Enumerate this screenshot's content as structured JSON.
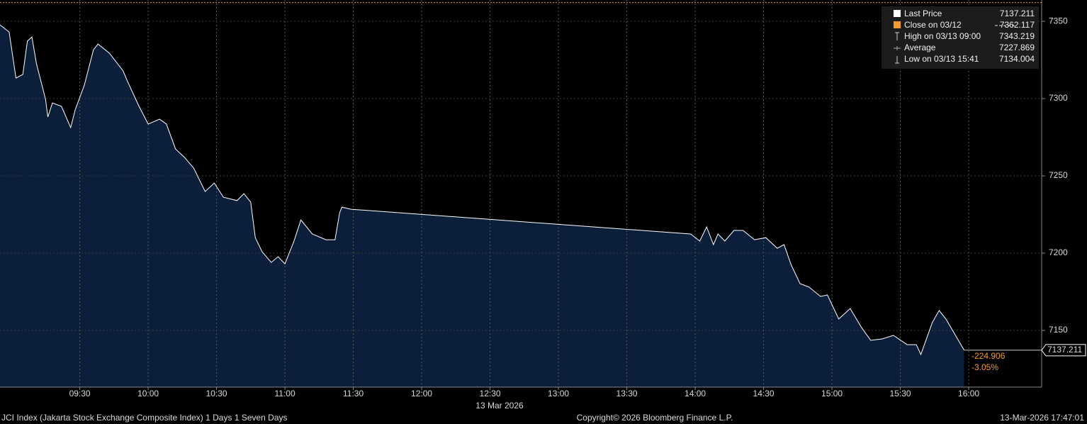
{
  "chart_data": {
    "type": "area",
    "xlim": [
      535,
      992
    ],
    "xticks": [
      {
        "value": 570,
        "label": "09:30"
      },
      {
        "value": 600,
        "label": "10:00"
      },
      {
        "value": 630,
        "label": "10:30"
      },
      {
        "value": 660,
        "label": "11:00"
      },
      {
        "value": 690,
        "label": "11:30"
      },
      {
        "value": 720,
        "label": "12:00"
      },
      {
        "value": 750,
        "label": "12:30"
      },
      {
        "value": 780,
        "label": "13:00"
      },
      {
        "value": 810,
        "label": "13:30"
      },
      {
        "value": 840,
        "label": "14:00"
      },
      {
        "value": 870,
        "label": "14:30"
      },
      {
        "value": 900,
        "label": "15:00"
      },
      {
        "value": 930,
        "label": "15:30"
      },
      {
        "value": 960,
        "label": "16:00"
      }
    ],
    "date_label": "13 Mar 2026",
    "ylim": [
      7113.3,
      7363.8
    ],
    "yticks": [
      7150,
      7200,
      7250,
      7300,
      7350
    ],
    "grid": true,
    "series": [
      {
        "name": "Last Price",
        "color": "#ffffff",
        "fill": "#0b1f3b",
        "x": [
          535,
          539,
          542,
          545,
          547,
          549,
          551,
          555,
          556,
          558,
          562,
          566,
          568,
          572,
          576,
          578,
          583,
          589,
          591,
          596,
          600,
          605,
          608,
          612,
          616,
          620,
          625,
          629,
          633,
          639,
          642,
          645,
          647,
          650,
          654,
          657,
          660,
          664,
          667,
          672,
          678,
          682,
          684,
          685,
          689,
          838,
          842,
          845,
          848,
          850,
          853,
          857,
          861,
          866,
          871,
          876,
          879,
          882,
          886,
          890,
          895,
          898,
          903,
          908,
          913,
          917,
          922,
          927,
          933,
          937,
          939,
          944,
          947,
          950,
          958
        ],
        "values": [
          7347.7,
          7343.1,
          7313.3,
          7315.6,
          7337.2,
          7339.9,
          7322.5,
          7299.5,
          7288.1,
          7297.2,
          7295.0,
          7281.2,
          7292.7,
          7308.7,
          7331.6,
          7335.3,
          7329.4,
          7317.9,
          7311.0,
          7295.0,
          7283.5,
          7286.7,
          7283.5,
          7267.4,
          7261.9,
          7255.0,
          7239.9,
          7245.4,
          7236.2,
          7234.0,
          7238.5,
          7233.0,
          7210.0,
          7200.9,
          7194.0,
          7197.7,
          7193.1,
          7207.8,
          7221.5,
          7212.4,
          7208.7,
          7208.7,
          7226.1,
          7229.8,
          7228.4,
          7212.4,
          7207.8,
          7217.0,
          7205.5,
          7212.4,
          7207.8,
          7214.7,
          7214.7,
          7208.7,
          7210.0,
          7203.2,
          7205.5,
          7192.7,
          7180.3,
          7178.0,
          7172.0,
          7173.0,
          7157.4,
          7164.2,
          7151.8,
          7143.6,
          7144.5,
          7146.8,
          7140.8,
          7140.8,
          7134.4,
          7155.0,
          7162.9,
          7157.4,
          7137.211
        ]
      }
    ],
    "stats": [
      {
        "label": "Close on 03/12",
        "value": 7362.117,
        "color": "#f39c2b"
      },
      {
        "label": "High on 03/13 09:00",
        "value": 7343.219
      },
      {
        "label": "Average",
        "value": 7227.869
      },
      {
        "label": "Low on 03/13 15:41",
        "value": 7134.004
      }
    ],
    "change": -224.906,
    "change_pct": {
      "value": -3.05,
      "label": "-3.05%"
    },
    "footer": {
      "left": "JCI Index (Jakarta Stock Exchange Composite Index) 1 Days 1 Seven Days",
      "center": "Copyright© 2026 Bloomberg Finance L.P.",
      "right": "13-Mar-2026 17:47:01"
    }
  }
}
